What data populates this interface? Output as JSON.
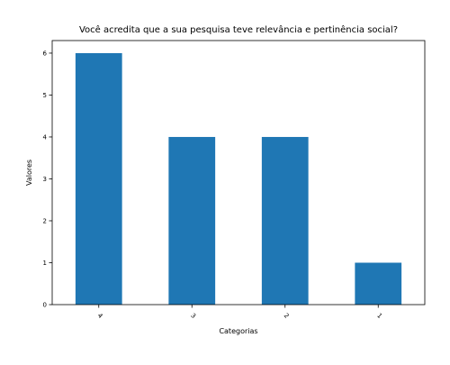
{
  "chart_data": {
    "type": "bar",
    "title": "Você acredita que a sua pesquisa teve relevância e pertinência social?",
    "xlabel": "Categorias",
    "ylabel": "Valores",
    "categories": [
      "4",
      "3",
      "2",
      "1"
    ],
    "values": [
      6,
      4,
      4,
      1
    ],
    "ylim": [
      0,
      6.3
    ],
    "yticks": [
      "0",
      "1",
      "2",
      "3",
      "4",
      "5",
      "6"
    ],
    "grid": false,
    "legend": "none",
    "bar_color": "#1f77b4"
  }
}
